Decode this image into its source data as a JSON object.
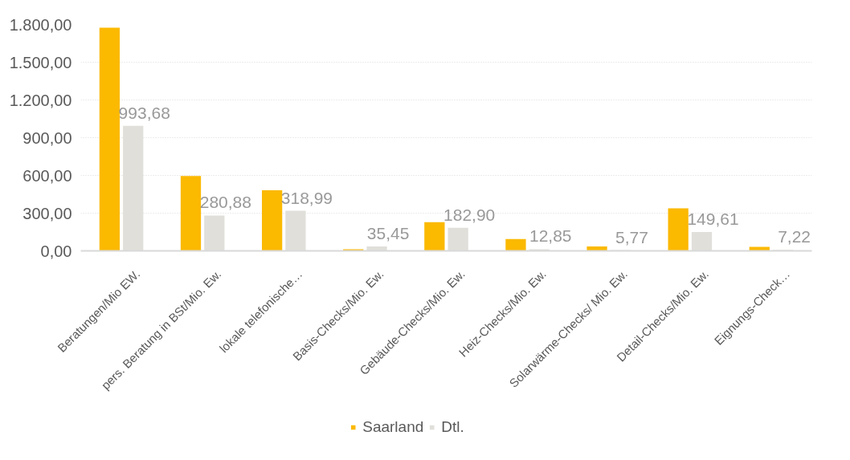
{
  "chart_data": {
    "type": "bar",
    "categories": [
      "Beratungen/Mio EW.",
      "pers. Beratung in BSt/Mio. Ew.",
      "lokale telefonische…",
      "Basis-Checks/Mio. Ew.",
      "Gebäude-Checks/Mio. Ew.",
      "Heiz-Checks/Mio. Ew.",
      "Solarwärme-Checks/ Mio. Ew.",
      "Detail-Checks/Mio. Ew.",
      "Eignungs-Check…"
    ],
    "series": [
      {
        "name": "Saarland",
        "color": "#fbb900",
        "values": [
          1775,
          595,
          482,
          13,
          228,
          94,
          35,
          338,
          32
        ]
      },
      {
        "name": "Dtl.",
        "color": "#e0dfda",
        "values": [
          993.68,
          280.88,
          318.99,
          35.45,
          182.9,
          12.85,
          5.77,
          149.61,
          7.22
        ],
        "value_labels": [
          "993,68",
          "280,88",
          "318,99",
          "35,45",
          "182,90",
          "12,85",
          "5,77",
          "149,61",
          "7,22"
        ]
      }
    ],
    "ylim": [
      0,
      1800
    ],
    "yticks": [
      {
        "value": 0,
        "label": "0,00"
      },
      {
        "value": 300,
        "label": "300,00"
      },
      {
        "value": 600,
        "label": "600,00"
      },
      {
        "value": 900,
        "label": "900,00"
      },
      {
        "value": 1200,
        "label": "1.200,00"
      },
      {
        "value": 1500,
        "label": "1.500,00"
      },
      {
        "value": 1800,
        "label": "1.800,00"
      }
    ],
    "grid": "y",
    "legend": "bottom"
  }
}
